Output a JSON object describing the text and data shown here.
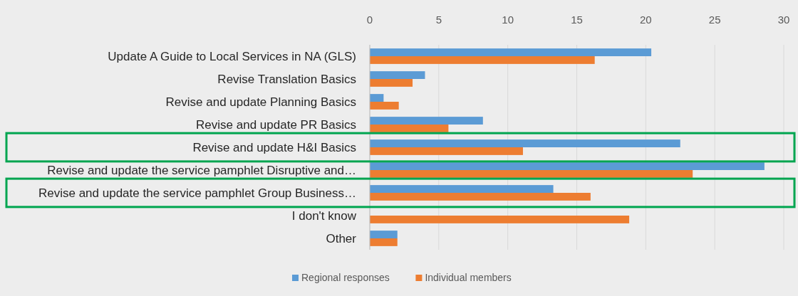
{
  "chart_data": {
    "type": "bar",
    "orientation": "horizontal",
    "categories": [
      "Update A Guide to Local Services in NA (GLS)",
      "Revise Translation Basics",
      "Revise and update Planning Basics",
      "Revise and update PR Basics",
      "Revise and update H&I Basics",
      "Revise and update the service pamphlet Disruptive and…",
      "Revise and update the service pamphlet Group Business…",
      "I don't know",
      "Other"
    ],
    "series": [
      {
        "name": "Regional responses",
        "color": "#5b9bd5",
        "values": [
          20.4,
          4.0,
          1.0,
          8.2,
          22.5,
          28.6,
          13.3,
          null,
          2.0
        ]
      },
      {
        "name": "Individual members",
        "color": "#ed7d31",
        "values": [
          16.3,
          3.1,
          2.1,
          5.7,
          11.1,
          23.4,
          16.0,
          18.8,
          2.0
        ]
      }
    ],
    "xlim": [
      0,
      30
    ],
    "xticks": [
      0,
      5,
      10,
      15,
      20,
      25,
      30
    ],
    "grid": "x",
    "legend": "bottom"
  }
}
